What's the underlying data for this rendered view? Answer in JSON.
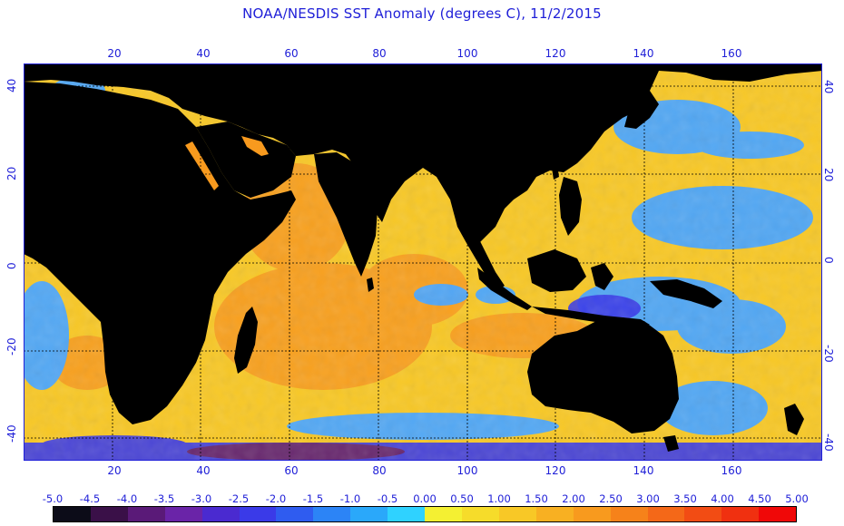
{
  "title": "NOAA/NESDIS SST Anomaly (degrees C), 11/2/2015",
  "longitude_labels": [
    "20",
    "40",
    "60",
    "80",
    "100",
    "120",
    "140",
    "160"
  ],
  "latitude_labels": [
    "40",
    "20",
    "0",
    "-20",
    "-40"
  ],
  "colorbar": {
    "labels": [
      "-5.0",
      "-4.5",
      "-4.0",
      "-3.5",
      "-3.0",
      "-2.5",
      "-2.0",
      "-1.5",
      "-1.0",
      "-0.5",
      "0.00",
      "0.50",
      "1.00",
      "1.50",
      "2.00",
      "2.50",
      "3.00",
      "3.50",
      "4.00",
      "4.50",
      "5.00"
    ],
    "colors": [
      "#0c0c18",
      "#3a1048",
      "#5a1a78",
      "#6a24a8",
      "#4a2ad0",
      "#3a3ae8",
      "#2f5cf0",
      "#2c84f6",
      "#2aa8fa",
      "#2fd2ff",
      "#f4f032",
      "#f6dc2a",
      "#f8c826",
      "#f8b022",
      "#f89a1e",
      "#f6821a",
      "#f46818",
      "#f24c14",
      "#f03010",
      "#f00808"
    ]
  },
  "map": {
    "land_color": "#000000",
    "neutral_ocean_color": "#f8c826",
    "warm_color": "#f89a1e",
    "cool_color": "#4aa6ff",
    "deep_cool_color": "#3a3ae8",
    "grid_color": "#000000",
    "frame_color": "#2020d8"
  }
}
